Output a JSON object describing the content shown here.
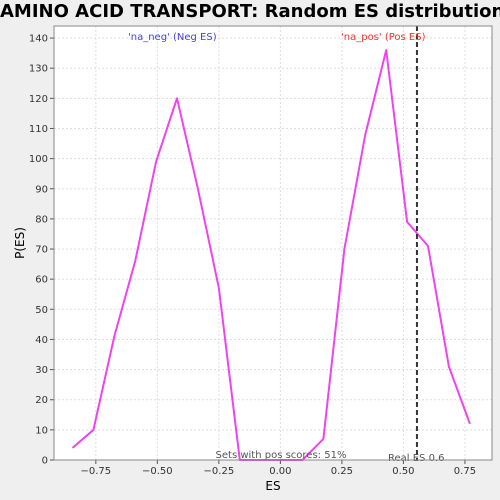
{
  "chart_data": {
    "type": "line",
    "title": "AMINO ACID TRANSPORT: Random ES distribution",
    "xlabel": "ES",
    "ylabel": "P(ES)",
    "xlim": [
      -0.92,
      0.86
    ],
    "ylim": [
      0,
      144
    ],
    "x_ticks": [
      -0.75,
      -0.5,
      -0.25,
      0.0,
      0.25,
      0.5,
      0.75
    ],
    "x_tick_labels": [
      "−0.75",
      "−0.50",
      "−0.25",
      "0.00",
      "0.25",
      "0.50",
      "0.75"
    ],
    "y_ticks": [
      0,
      10,
      20,
      30,
      40,
      50,
      60,
      70,
      80,
      90,
      100,
      110,
      120,
      130,
      140
    ],
    "y_tick_labels": [
      "0",
      "10",
      "20",
      "30",
      "40",
      "50",
      "60",
      "70",
      "80",
      "90",
      "100",
      "110",
      "120",
      "130",
      "140"
    ],
    "grid": true,
    "series": [
      {
        "color": "#ee44ee",
        "x": [
          -0.845,
          -0.76,
          -0.675,
          -0.59,
          -0.505,
          -0.42,
          -0.335,
          -0.25,
          -0.165,
          -0.08,
          0.005,
          0.09,
          0.175,
          0.26,
          0.345,
          0.43,
          0.515,
          0.6,
          0.685,
          0.77
        ],
        "y": [
          4,
          10,
          41,
          66,
          99,
          120,
          90,
          57,
          0,
          0,
          0,
          0,
          7,
          70,
          108,
          136,
          79,
          71,
          31,
          12
        ]
      }
    ],
    "annotations": {
      "neg_label": "'na_neg' (Neg ES)",
      "pos_label": "'na_pos' (Pos ES)",
      "pos_scores": "Sets with pos scores: 51%",
      "real_es_label": "Real ES 0.6",
      "real_es_value": 0.555
    },
    "colors": {
      "line": "#ee44ee",
      "neg_label": "#4444dd",
      "pos_label": "#ee3333",
      "real_es_line": "#333333",
      "grid": "#dddddd"
    }
  }
}
